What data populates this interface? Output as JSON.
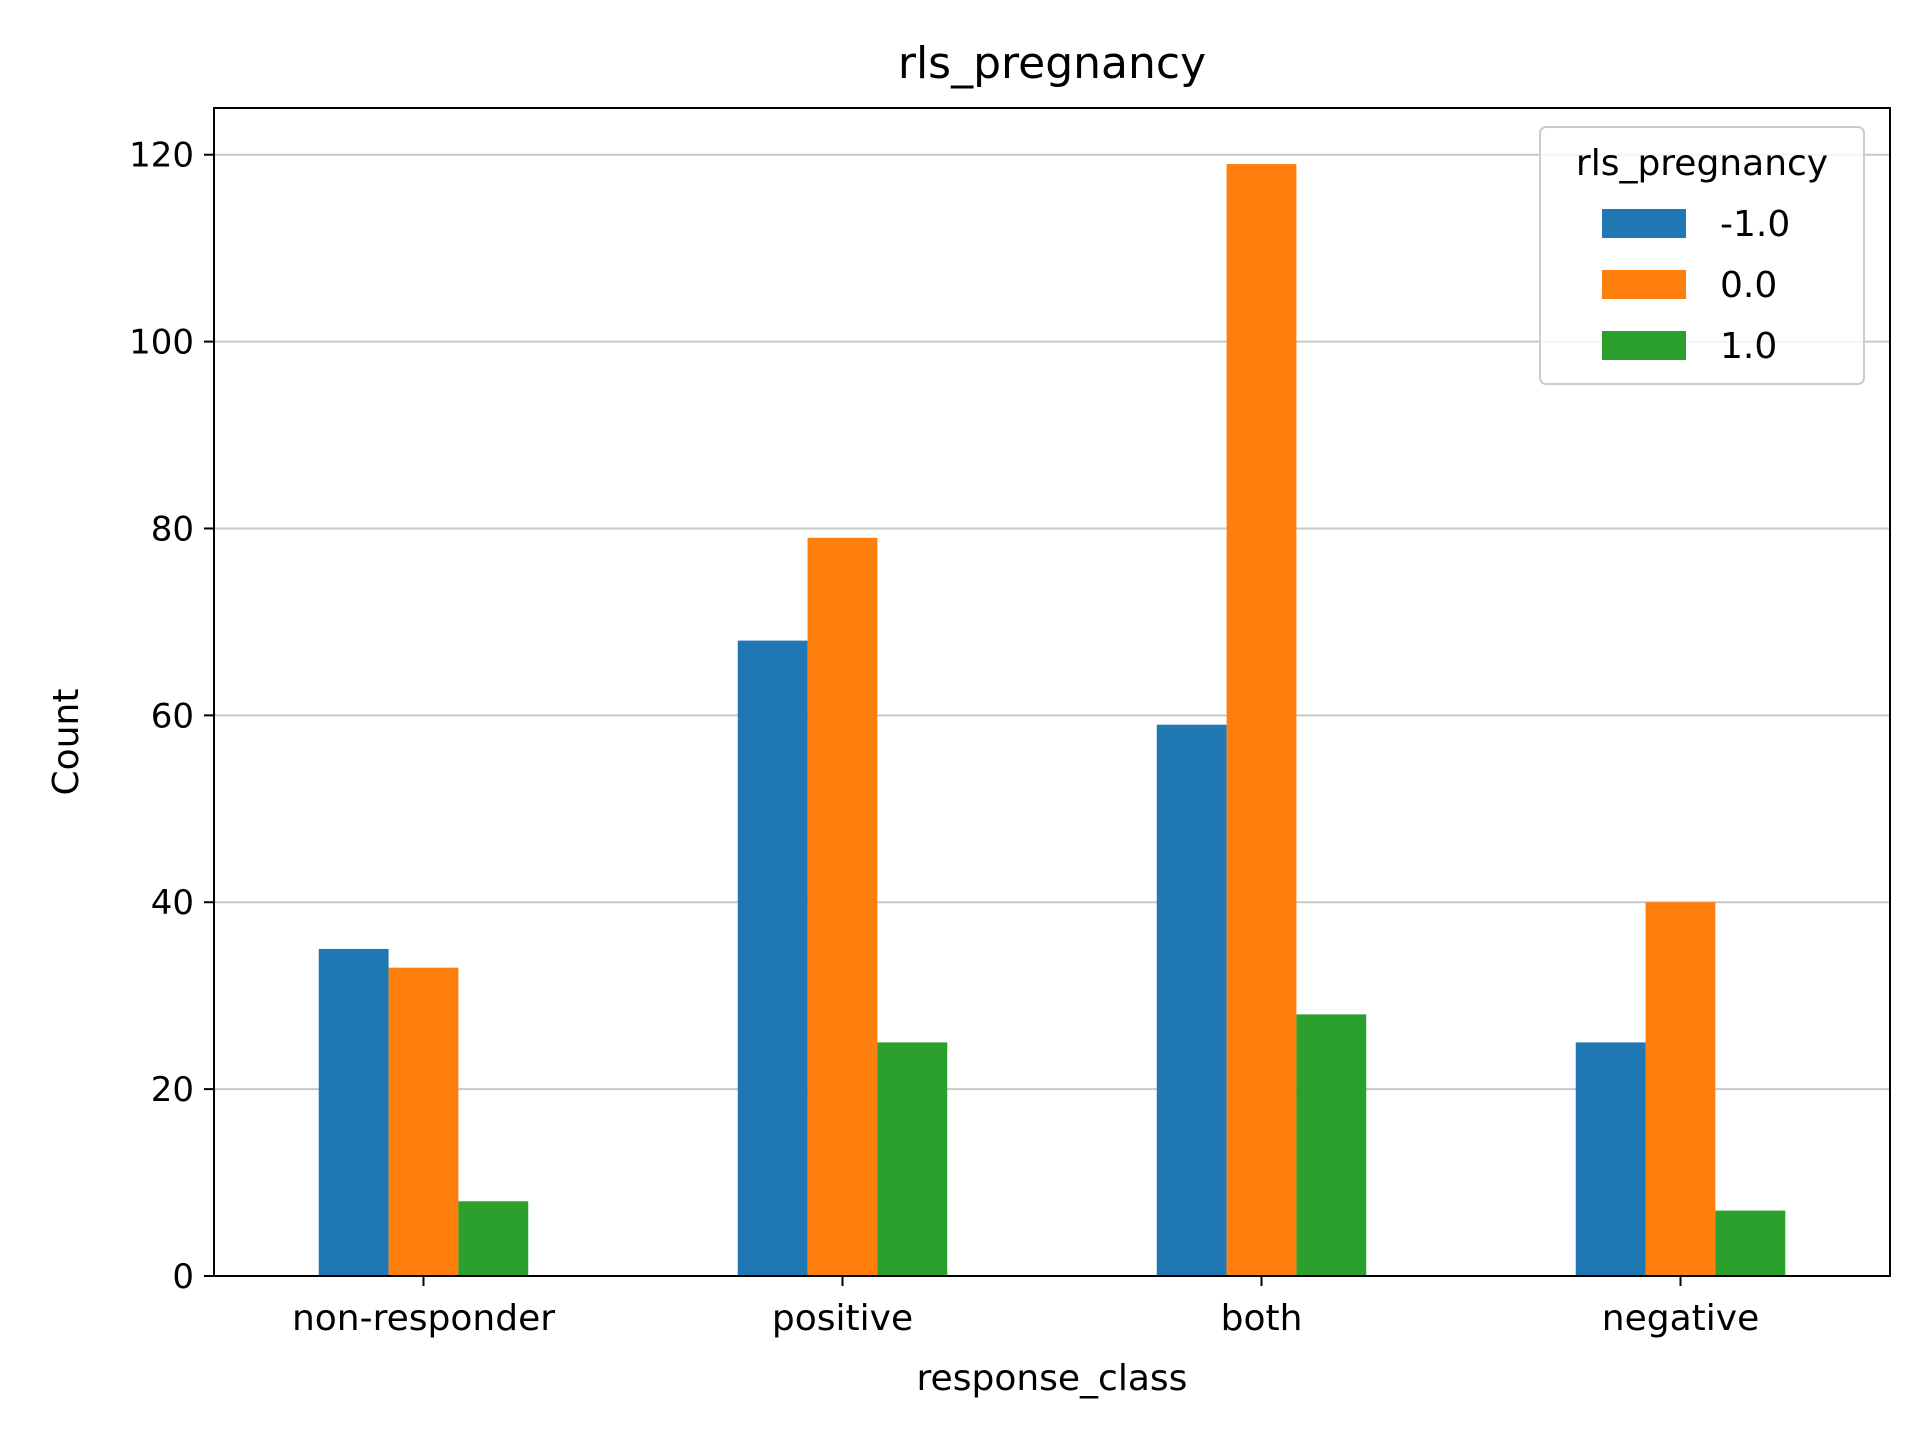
{
  "chart_data": {
    "type": "bar",
    "title": "rls_pregnancy",
    "xlabel": "response_class",
    "ylabel": "Count",
    "categories": [
      "non-responder",
      "positive",
      "both",
      "negative"
    ],
    "series": [
      {
        "name": "-1.0",
        "color": "#1f77b4",
        "values": [
          35,
          68,
          59,
          25
        ]
      },
      {
        "name": "0.0",
        "color": "#ff7f0e",
        "values": [
          33,
          79,
          119,
          40
        ]
      },
      {
        "name": "1.0",
        "color": "#2ca02c",
        "values": [
          8,
          25,
          28,
          7
        ]
      }
    ],
    "ylim": [
      0,
      125
    ],
    "yticks": [
      0,
      20,
      40,
      60,
      80,
      100,
      120
    ],
    "grid": "y",
    "legend": {
      "title": "rls_pregnancy",
      "position": "top-right"
    }
  }
}
